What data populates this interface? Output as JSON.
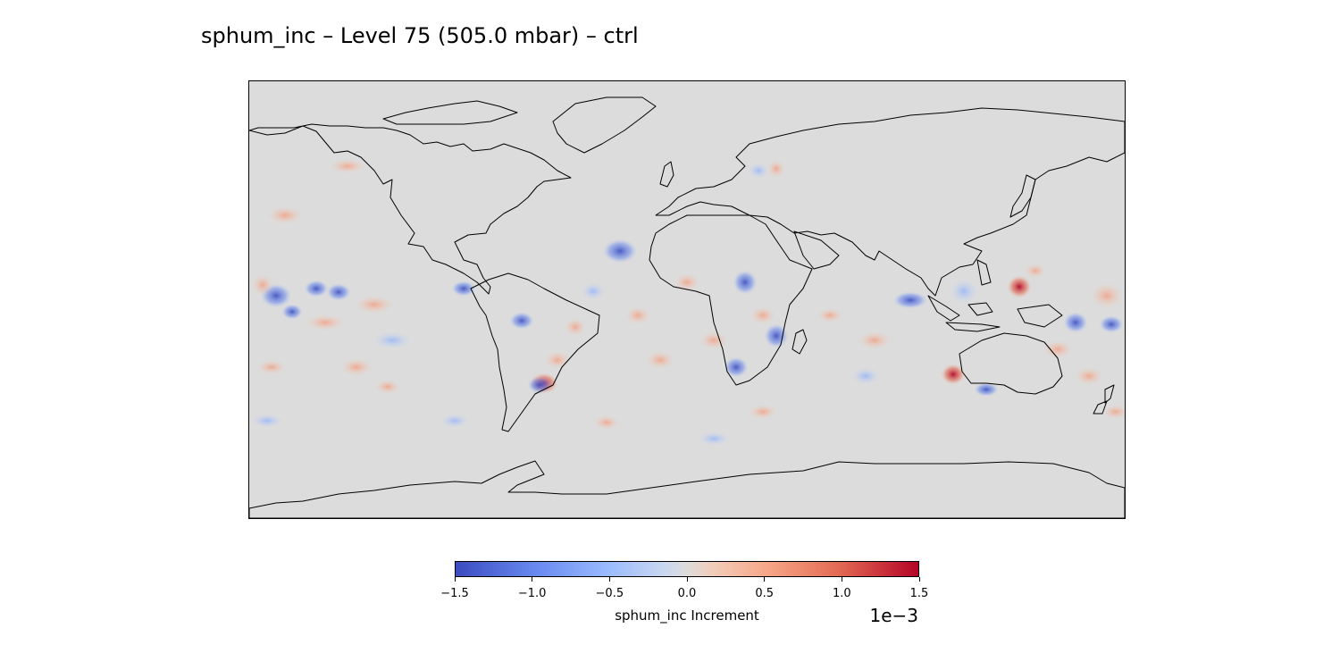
{
  "title": "sphum_inc – Level 75 (505.0 mbar) – ctrl",
  "map": {
    "projection": "PlateCarree",
    "extent_lon": [
      -180,
      180
    ],
    "extent_lat": [
      -90,
      90
    ],
    "background_color": "#dcdcdc",
    "coastline_color": "#000000",
    "field_colormap": "coolwarm"
  },
  "colorbar": {
    "label": "sphum_inc Increment",
    "scale_text": "1e−3",
    "ticks": [
      "−1.5",
      "−1.0",
      "−0.5",
      "0.0",
      "0.5",
      "1.0",
      "1.5"
    ],
    "vmin": -1.5,
    "vmax": 1.5,
    "colors": [
      "#3b4cc0",
      "#9abbff",
      "#dddcdc",
      "#f7a889",
      "#b40426"
    ]
  },
  "chart_data": {
    "type": "heatmap",
    "title": "sphum_inc – Level 75 (505.0 mbar) – ctrl",
    "colorbar_label": "sphum_inc Increment",
    "units_scale": "1e−3",
    "clim": [
      -1.5,
      1.5
    ],
    "notable_anomalies": [
      {
        "lon": 125,
        "lat": 20,
        "value": 1.4
      },
      {
        "lon": -53,
        "lat": -30,
        "value": 1.2
      },
      {
        "lon": -57,
        "lat": -37,
        "value": -1.1
      },
      {
        "lon": 32,
        "lat": -17,
        "value": -1.0
      },
      {
        "lon": -20,
        "lat": 18,
        "value": -0.8
      },
      {
        "lon": 158,
        "lat": -4,
        "value": -0.9
      },
      {
        "lon": 118,
        "lat": -17,
        "value": 0.8
      },
      {
        "lon": -160,
        "lat": 3,
        "value": -0.7
      },
      {
        "lon": -135,
        "lat": 4,
        "value": -0.7
      },
      {
        "lon": -93,
        "lat": 4,
        "value": -0.6
      }
    ]
  }
}
